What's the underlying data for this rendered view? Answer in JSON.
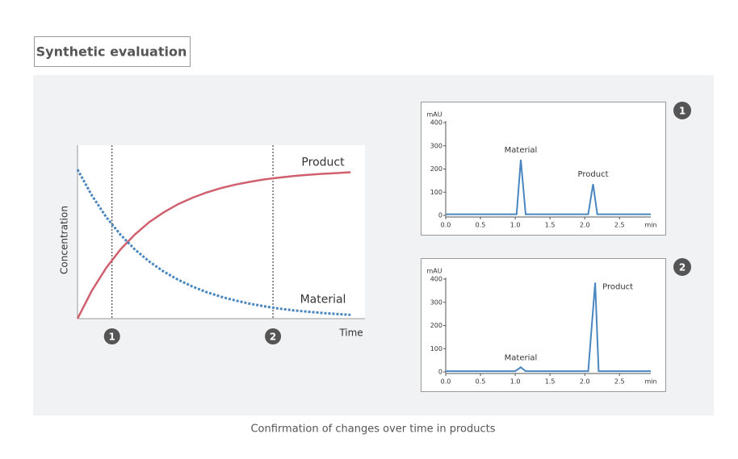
{
  "header": {
    "title": "Synthetic evaluation"
  },
  "caption": "Confirmation of changes over time in products",
  "chart_data": [
    {
      "type": "line",
      "xlabel": "Time",
      "ylabel": "Concentration",
      "xlim": [
        0,
        10
      ],
      "ylim": [
        0,
        10
      ],
      "x": [
        0,
        0.5,
        1,
        1.5,
        2,
        2.5,
        3,
        3.5,
        4,
        4.5,
        5,
        5.5,
        6,
        6.5,
        7,
        7.5,
        8,
        8.5,
        9,
        9.5
      ],
      "series": [
        {
          "name": "Product",
          "color": "#d0606e",
          "linestyle": "solid",
          "values": [
            0,
            1.62,
            2.93,
            4.0,
            4.86,
            5.57,
            6.13,
            6.6,
            6.97,
            7.28,
            7.53,
            7.73,
            7.89,
            8.03,
            8.13,
            8.22,
            8.29,
            8.35,
            8.39,
            8.44
          ]
        },
        {
          "name": "Material",
          "color": "#4a86c0",
          "linestyle": "dotted",
          "values": [
            8.6,
            7.1,
            5.85,
            4.83,
            3.98,
            3.29,
            2.71,
            2.24,
            1.85,
            1.52,
            1.26,
            1.04,
            0.86,
            0.71,
            0.58,
            0.48,
            0.4,
            0.33,
            0.27,
            0.22
          ]
        }
      ],
      "markers": [
        {
          "x": 1.2,
          "label": "1"
        },
        {
          "x": 6.8,
          "label": "2"
        }
      ]
    },
    {
      "type": "chromatogram",
      "badge": "1",
      "xlabel": "min",
      "ylabel": "mAU",
      "xlim": [
        0,
        2.95
      ],
      "ylim": [
        0,
        400
      ],
      "xticks": [
        {
          "value": 0,
          "label": "0.0"
        },
        {
          "value": 0.5,
          "label": "0.5"
        },
        {
          "value": 1,
          "label": "1.0"
        },
        {
          "value": 1.5,
          "label": "1.5"
        },
        {
          "value": 2,
          "label": "2.0"
        },
        {
          "value": 2.5,
          "label": "2.5"
        }
      ],
      "yticks": [
        0,
        100,
        200,
        300,
        400
      ],
      "x": [
        0,
        1.02,
        1.08,
        1.15,
        2.05,
        2.12,
        2.18,
        2.95
      ],
      "series": [
        {
          "color": "#4a86c0",
          "values": [
            5,
            5,
            240,
            5,
            5,
            135,
            5,
            5
          ]
        }
      ],
      "annotations": [
        "Material",
        "Product"
      ]
    },
    {
      "type": "chromatogram",
      "badge": "2",
      "xlabel": "min",
      "ylabel": "mAU",
      "xlim": [
        0,
        2.95
      ],
      "ylim": [
        0,
        400
      ],
      "xticks": [
        {
          "value": 0,
          "label": "0.0"
        },
        {
          "value": 0.5,
          "label": "0.5"
        },
        {
          "value": 1,
          "label": "1.0"
        },
        {
          "value": 1.5,
          "label": "1.5"
        },
        {
          "value": 2,
          "label": "2.0"
        },
        {
          "value": 2.5,
          "label": "2.5"
        }
      ],
      "yticks": [
        0,
        100,
        200,
        300,
        400
      ],
      "x": [
        0,
        1.0,
        1.08,
        1.15,
        2.05,
        2.15,
        2.2,
        2.95
      ],
      "series": [
        {
          "color": "#4a86c0",
          "values": [
            3,
            3,
            20,
            3,
            3,
            385,
            3,
            3
          ]
        }
      ],
      "annotations": [
        "Material",
        "Product"
      ]
    }
  ]
}
